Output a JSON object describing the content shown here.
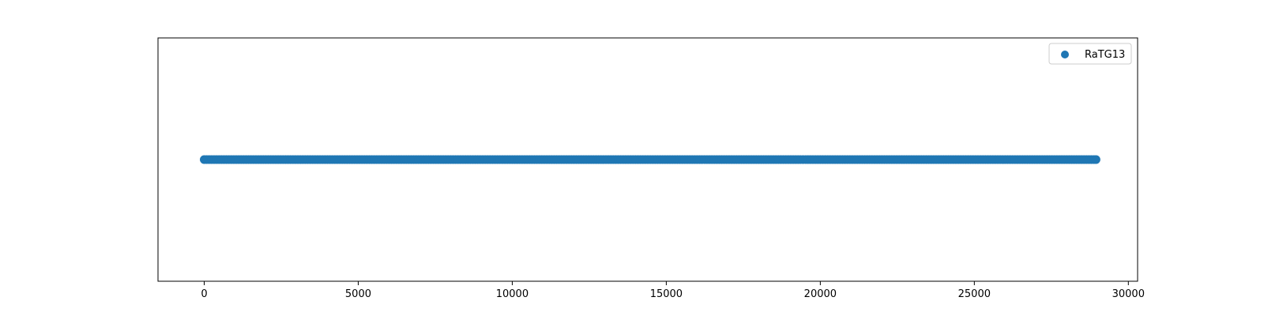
{
  "chart_data": {
    "type": "scatter",
    "title": "",
    "xlabel": "",
    "ylabel": "",
    "xlim": [
      -1500,
      30300
    ],
    "ylim": [
      -1,
      1
    ],
    "xticks": [
      0,
      5000,
      10000,
      15000,
      20000,
      25000,
      30000
    ],
    "yticks_visible": false,
    "grid": false,
    "legend_position": "upper-right",
    "series": [
      {
        "name": "RaTG13",
        "color": "#1f77b4",
        "x_range": [
          0,
          28950
        ],
        "y": 0
      }
    ]
  }
}
